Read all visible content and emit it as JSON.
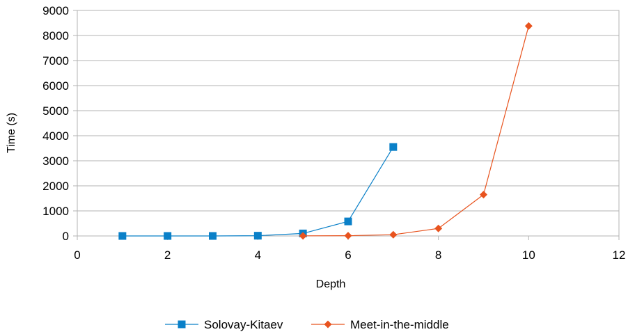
{
  "chart_data": {
    "type": "scatter",
    "title": "",
    "xlabel": "Depth",
    "ylabel": "Time (s)",
    "xlim": [
      0,
      12
    ],
    "ylim": [
      0,
      9000
    ],
    "xticks": [
      0,
      2,
      4,
      6,
      8,
      10,
      12
    ],
    "yticks": [
      0,
      1000,
      2000,
      3000,
      4000,
      5000,
      6000,
      7000,
      8000,
      9000
    ],
    "grid": "horizontal",
    "legend": "bottom",
    "series": [
      {
        "name": "Solovay-Kitaev",
        "color": "#0a80c8",
        "marker": "square",
        "x": [
          1,
          2,
          3,
          4,
          5,
          6,
          7
        ],
        "y": [
          0,
          0,
          0,
          10,
          100,
          580,
          3550
        ]
      },
      {
        "name": "Meet-in-the-middle",
        "color": "#e8531e",
        "marker": "diamond",
        "x": [
          5,
          6,
          7,
          8,
          9,
          10
        ],
        "y": [
          5,
          10,
          50,
          300,
          1650,
          8380
        ]
      }
    ]
  }
}
